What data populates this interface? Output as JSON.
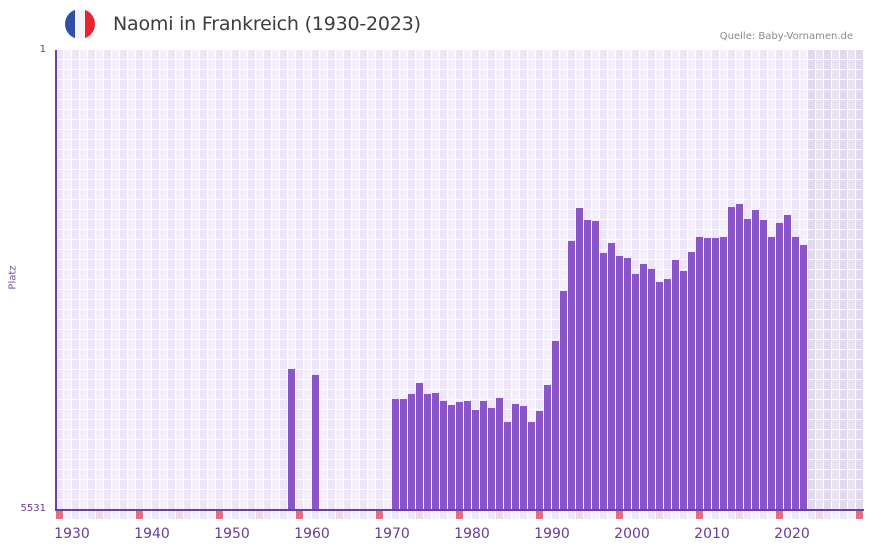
{
  "header": {
    "title": "Naomi in Frankreich (1930-2023)",
    "source": "Quelle: Baby-Vornamen.de",
    "flag": {
      "icon": "france-flag-icon",
      "colors": [
        "#2f4fa2",
        "#f4f4f6",
        "#e8252f"
      ]
    }
  },
  "colors": {
    "bar": "#8a55c8",
    "axis": "#6b3fa0",
    "grid_light": "#f3effb",
    "grid_dark": "#ece6f7",
    "future_light": "#e7e3f0",
    "future_dark": "#e0dbec",
    "marker_decade": "#e2707a",
    "marker_half": "#f3d7df",
    "label": "#6a3d9a"
  },
  "chart_data": {
    "type": "bar",
    "title": "Naomi in Frankreich (1930-2023)",
    "xlabel": "",
    "ylabel": "Platz",
    "ylim": [
      5531,
      1
    ],
    "y_inverted": true,
    "ytick_labels": [
      "1",
      "5531"
    ],
    "x_range": [
      1930,
      2030
    ],
    "future_shaded_from": 2024,
    "xtick_labels": [
      "1930",
      "1940",
      "1950",
      "1960",
      "1970",
      "1980",
      "1990",
      "2000",
      "2010",
      "2020"
    ],
    "grid": true,
    "legend": null,
    "source": "Quelle: Baby-Vornamen.de",
    "categories": [
      1959,
      1962,
      1972,
      1973,
      1974,
      1975,
      1976,
      1977,
      1978,
      1979,
      1980,
      1981,
      1982,
      1983,
      1984,
      1985,
      1986,
      1987,
      1988,
      1989,
      1990,
      1991,
      1992,
      1993,
      1994,
      1995,
      1996,
      1997,
      1998,
      1999,
      2000,
      2001,
      2002,
      2003,
      2004,
      2005,
      2006,
      2007,
      2008,
      2009,
      2010,
      2011,
      2012,
      2013,
      2014,
      2015,
      2016,
      2017,
      2018,
      2019,
      2020,
      2021,
      2022,
      2023
    ],
    "values": [
      3836,
      3908,
      4197,
      4197,
      4136,
      4004,
      4136,
      4124,
      4221,
      4269,
      4233,
      4221,
      4329,
      4221,
      4305,
      4185,
      4473,
      4257,
      4281,
      4473,
      4341,
      4028,
      3499,
      2898,
      2297,
      1900,
      2045,
      2057,
      2441,
      2321,
      2477,
      2502,
      2694,
      2574,
      2634,
      2790,
      2754,
      2526,
      2658,
      2429,
      2249,
      2261,
      2261,
      2249,
      1888,
      1852,
      2033,
      1924,
      2045,
      2249,
      2081,
      1984,
      2249,
      2345
    ]
  }
}
